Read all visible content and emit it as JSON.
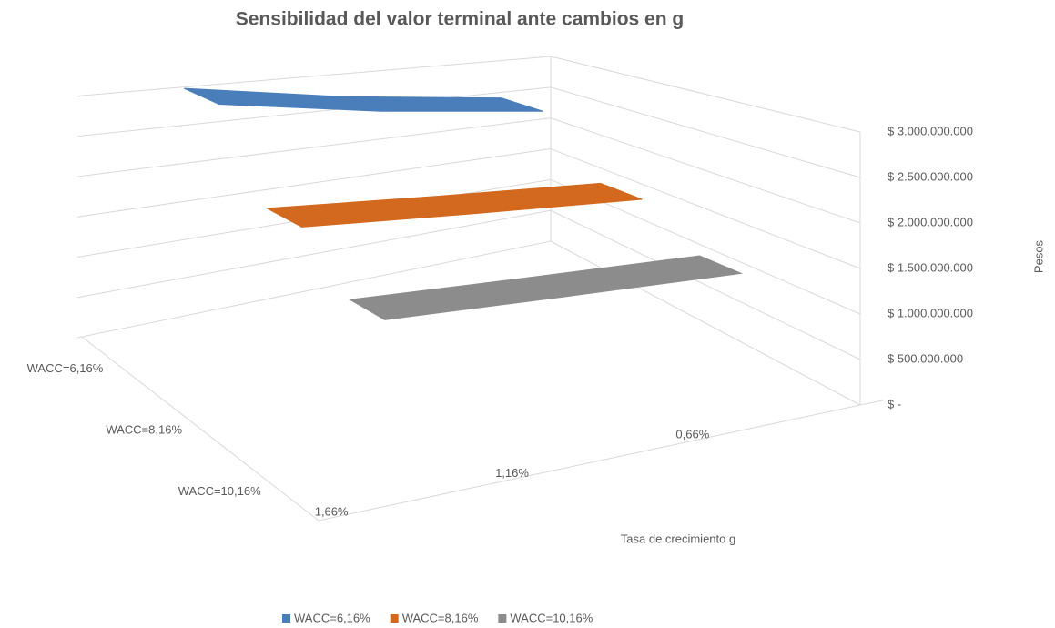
{
  "chart_data": {
    "type": "ribbon3d",
    "title": "Sensibilidad del valor terminal ante cambios en g",
    "x_label": "Tasa de crecimiento g",
    "y_label": "Pesos",
    "categories": [
      "0,66%",
      "1,16%",
      "1,66%"
    ],
    "series": [
      {
        "name": "WACC=6,16%",
        "color": "#4a7ebb",
        "values": [
          2600000000,
          2850000000,
          3150000000
        ]
      },
      {
        "name": "WACC=8,16%",
        "color": "#d2691e",
        "values": [
          1900000000,
          2050000000,
          2200000000
        ]
      },
      {
        "name": "WACC=10,16%",
        "color": "#8c8c8c",
        "values": [
          1500000000,
          1600000000,
          1700000000
        ]
      }
    ],
    "ylim": [
      0,
      3000000000
    ],
    "yticks": [
      {
        "value": 0,
        "label": "$ -"
      },
      {
        "value": 500000000,
        "label": "$ 500.000.000"
      },
      {
        "value": 1000000000,
        "label": "$ 1.000.000.000"
      },
      {
        "value": 1500000000,
        "label": "$ 1.500.000.000"
      },
      {
        "value": 2000000000,
        "label": "$ 2.000.000.000"
      },
      {
        "value": 2500000000,
        "label": "$ 2.500.000.000"
      },
      {
        "value": 3000000000,
        "label": "$ 3.000.000.000"
      }
    ],
    "grid": true,
    "legend": "bottom"
  }
}
